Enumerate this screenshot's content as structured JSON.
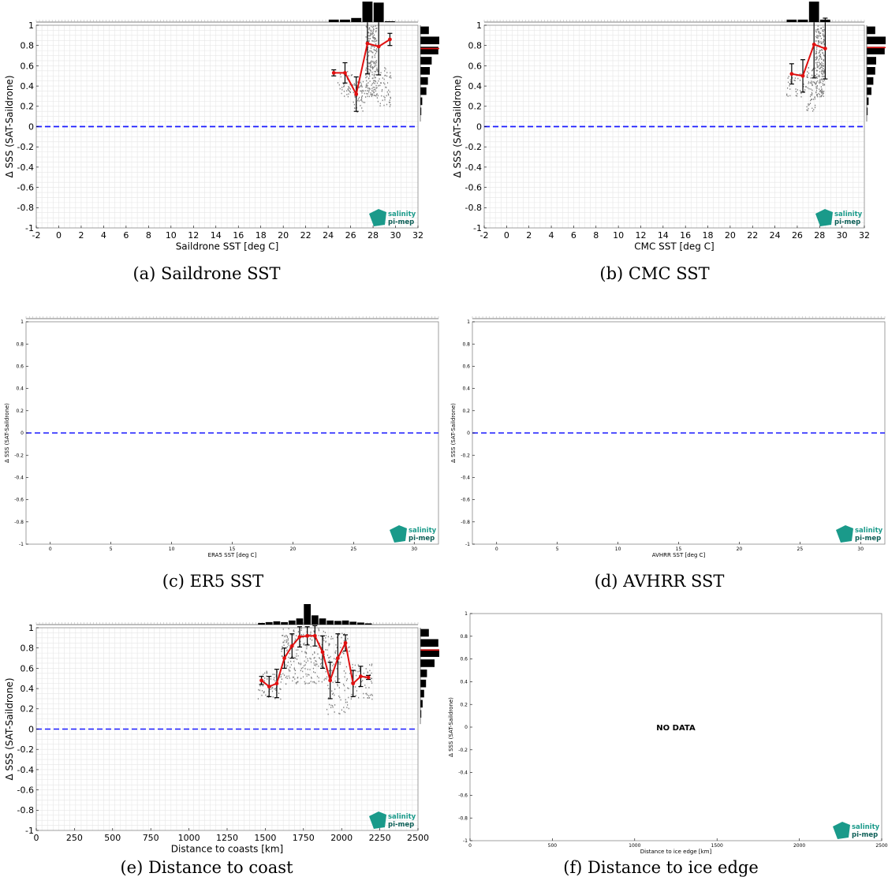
{
  "colors": {
    "mean_line": "#e01010",
    "zero_line": "#1a1aff",
    "scatter": "#7f7f7f",
    "grid": "#e6e6e6",
    "hist": "#000000",
    "logo_teal": "#1a9a8a"
  },
  "logo": {
    "line1": "salinity",
    "line2": "pi-mep"
  },
  "no_data_text": "NO DATA",
  "chart_data": [
    {
      "id": "a",
      "type": "scatter",
      "caption": "(a) Saildrone SST",
      "xlabel": "Saildrone SST [deg C]",
      "ylabel": "Δ SSS (SAT-Saildrone)",
      "xlim": [
        -2,
        32
      ],
      "ylim": [
        -1,
        1
      ],
      "xticks": [
        -2,
        0,
        2,
        4,
        6,
        8,
        10,
        12,
        14,
        16,
        18,
        20,
        22,
        24,
        26,
        28,
        30,
        32
      ],
      "yticks": [
        -1,
        -0.8,
        -0.6,
        -0.4,
        -0.2,
        0,
        0.2,
        0.4,
        0.6,
        0.8,
        1
      ],
      "grid": true,
      "zero_line": 0,
      "mean": [
        {
          "x": 24.5,
          "y": 0.53,
          "err": 0.03
        },
        {
          "x": 25.5,
          "y": 0.53,
          "err": 0.1
        },
        {
          "x": 26.5,
          "y": 0.32,
          "err": 0.17
        },
        {
          "x": 27.5,
          "y": 0.82,
          "err": 0.3
        },
        {
          "x": 28.5,
          "y": 0.79,
          "err": 0.28
        },
        {
          "x": 29.5,
          "y": 0.86,
          "err": 0.06
        }
      ],
      "scatter_clusters": [
        {
          "xmin": 24.8,
          "xmax": 26.2,
          "ymin": 0.3,
          "ymax": 0.55,
          "n": 40
        },
        {
          "xmin": 26.2,
          "xmax": 27.3,
          "ymin": 0.15,
          "ymax": 0.45,
          "n": 60
        },
        {
          "xmin": 27.3,
          "xmax": 28.3,
          "ymin": 0.3,
          "ymax": 1.0,
          "n": 220
        },
        {
          "xmin": 28.3,
          "xmax": 29.6,
          "ymin": 0.2,
          "ymax": 0.6,
          "n": 60
        }
      ],
      "x_hist": {
        "bins": [
          24.5,
          25.5,
          26.5,
          27.5,
          28.5,
          29.5
        ],
        "counts": [
          0.12,
          0.12,
          0.2,
          1.0,
          0.95,
          0.04
        ]
      },
      "y_hist": {
        "bins": [
          0.95,
          0.85,
          0.75,
          0.65,
          0.55,
          0.45,
          0.35,
          0.25,
          0.15
        ],
        "counts": [
          0.45,
          1.0,
          0.95,
          0.6,
          0.5,
          0.4,
          0.32,
          0.1,
          0.05
        ]
      },
      "y_mean_marker": 0.77
    },
    {
      "id": "b",
      "type": "scatter",
      "caption": "(b) CMC SST",
      "xlabel": "CMC SST [deg C]",
      "ylabel": "Δ SSS (SAT-Saildrone)",
      "xlim": [
        -2,
        32
      ],
      "ylim": [
        -1,
        1
      ],
      "xticks": [
        -2,
        0,
        2,
        4,
        6,
        8,
        10,
        12,
        14,
        16,
        18,
        20,
        22,
        24,
        26,
        28,
        30,
        32
      ],
      "yticks": [
        -1,
        -0.8,
        -0.6,
        -0.4,
        -0.2,
        0,
        0.2,
        0.4,
        0.6,
        0.8,
        1
      ],
      "grid": true,
      "zero_line": 0,
      "mean": [
        {
          "x": 25.5,
          "y": 0.52,
          "err": 0.1
        },
        {
          "x": 26.5,
          "y": 0.5,
          "err": 0.16
        },
        {
          "x": 27.5,
          "y": 0.81,
          "err": 0.33
        },
        {
          "x": 28.5,
          "y": 0.77,
          "err": 0.3
        }
      ],
      "scatter_clusters": [
        {
          "xmin": 25.0,
          "xmax": 26.8,
          "ymin": 0.3,
          "ymax": 0.55,
          "n": 40
        },
        {
          "xmin": 26.8,
          "xmax": 27.6,
          "ymin": 0.15,
          "ymax": 0.6,
          "n": 60
        },
        {
          "xmin": 27.6,
          "xmax": 28.4,
          "ymin": 0.3,
          "ymax": 1.0,
          "n": 220
        }
      ],
      "x_hist": {
        "bins": [
          25.5,
          26.5,
          27.5,
          28.5
        ],
        "counts": [
          0.12,
          0.12,
          1.0,
          0.12
        ]
      },
      "y_hist": {
        "bins": [
          0.95,
          0.85,
          0.75,
          0.65,
          0.55,
          0.45,
          0.35,
          0.25,
          0.15
        ],
        "counts": [
          0.45,
          1.0,
          0.95,
          0.5,
          0.45,
          0.35,
          0.25,
          0.1,
          0.05
        ]
      },
      "y_mean_marker": 0.78
    },
    {
      "id": "c",
      "type": "scatter",
      "caption": "(c) ER5 SST",
      "xlabel": "ERA5 SST [deg C]",
      "ylabel": "Δ SSS (SAT-Saildrone)",
      "xlim": [
        -2,
        32
      ],
      "ylim": [
        -1,
        1
      ],
      "xticks": [
        0,
        5,
        10,
        15,
        20,
        25,
        30
      ],
      "yticks": [
        -1,
        -0.8,
        -0.6,
        -0.4,
        -0.2,
        0,
        0.2,
        0.4,
        0.6,
        0.8,
        1
      ],
      "grid": false,
      "zero_line": 0,
      "mean": [],
      "scatter_clusters": [],
      "empty_hist_axes": true
    },
    {
      "id": "d",
      "type": "scatter",
      "caption": "(d) AVHRR SST",
      "xlabel": "AVHRR SST [deg C]",
      "ylabel": "Δ SSS (SAT-Saildrone)",
      "xlim": [
        -2,
        32
      ],
      "ylim": [
        -1,
        1
      ],
      "xticks": [
        0,
        5,
        10,
        15,
        20,
        25,
        30
      ],
      "yticks": [
        -1,
        -0.8,
        -0.6,
        -0.4,
        -0.2,
        0,
        0.2,
        0.4,
        0.6,
        0.8,
        1
      ],
      "grid": false,
      "zero_line": 0,
      "mean": [],
      "scatter_clusters": [],
      "empty_hist_axes": true
    },
    {
      "id": "e",
      "type": "scatter",
      "caption": "(e) Distance to coast",
      "xlabel": "Distance to coasts [km]",
      "ylabel": "Δ SSS (SAT-Saildrone)",
      "xlim": [
        0,
        2500
      ],
      "ylim": [
        -1,
        1
      ],
      "xticks": [
        0,
        250,
        500,
        750,
        1000,
        1250,
        1500,
        1750,
        2000,
        2250,
        2500
      ],
      "yticks": [
        -1,
        -0.8,
        -0.6,
        -0.4,
        -0.2,
        0,
        0.2,
        0.4,
        0.6,
        0.8,
        1
      ],
      "grid": true,
      "zero_line": 0,
      "mean": [
        {
          "x": 1475,
          "y": 0.48,
          "err": 0.04
        },
        {
          "x": 1525,
          "y": 0.42,
          "err": 0.1
        },
        {
          "x": 1575,
          "y": 0.45,
          "err": 0.14
        },
        {
          "x": 1625,
          "y": 0.7,
          "err": 0.1
        },
        {
          "x": 1675,
          "y": 0.82,
          "err": 0.12
        },
        {
          "x": 1725,
          "y": 0.91,
          "err": 0.1
        },
        {
          "x": 1775,
          "y": 0.92,
          "err": 0.09
        },
        {
          "x": 1825,
          "y": 0.92,
          "err": 0.1
        },
        {
          "x": 1875,
          "y": 0.76,
          "err": 0.16
        },
        {
          "x": 1925,
          "y": 0.48,
          "err": 0.18
        },
        {
          "x": 1975,
          "y": 0.7,
          "err": 0.24
        },
        {
          "x": 2025,
          "y": 0.85,
          "err": 0.08
        },
        {
          "x": 2075,
          "y": 0.45,
          "err": 0.13
        },
        {
          "x": 2125,
          "y": 0.52,
          "err": 0.1
        },
        {
          "x": 2175,
          "y": 0.51,
          "err": 0.02
        }
      ],
      "scatter_clusters": [
        {
          "xmin": 1450,
          "xmax": 1600,
          "ymin": 0.3,
          "ymax": 0.6,
          "n": 60
        },
        {
          "xmin": 1600,
          "xmax": 1900,
          "ymin": 0.45,
          "ymax": 1.0,
          "n": 240
        },
        {
          "xmin": 1900,
          "xmax": 2050,
          "ymin": 0.15,
          "ymax": 0.95,
          "n": 120
        },
        {
          "xmin": 2050,
          "xmax": 2200,
          "ymin": 0.3,
          "ymax": 0.65,
          "n": 60
        }
      ],
      "x_hist": {
        "bins": [
          1475,
          1525,
          1575,
          1625,
          1675,
          1725,
          1775,
          1825,
          1875,
          1925,
          1975,
          2025,
          2075,
          2125,
          2175
        ],
        "counts": [
          0.08,
          0.12,
          0.16,
          0.12,
          0.2,
          0.3,
          1.0,
          0.45,
          0.3,
          0.2,
          0.18,
          0.2,
          0.14,
          0.1,
          0.06
        ]
      },
      "y_hist": {
        "bins": [
          0.95,
          0.85,
          0.75,
          0.65,
          0.55,
          0.45,
          0.35,
          0.25,
          0.15
        ],
        "counts": [
          0.45,
          0.95,
          1.0,
          0.75,
          0.35,
          0.3,
          0.2,
          0.12,
          0.05
        ]
      },
      "y_mean_marker": 0.78
    },
    {
      "id": "f",
      "type": "scatter",
      "caption": "(f) Distance to ice edge",
      "xlabel": "Distance to ice edge [km]",
      "ylabel": "Δ SSS (SAT-Saildrone)",
      "xlim": [
        0,
        2500
      ],
      "ylim": [
        -1,
        1
      ],
      "xticks": [
        0,
        500,
        1000,
        1500,
        2000,
        2500
      ],
      "yticks": [
        -1,
        -0.8,
        -0.6,
        -0.4,
        -0.2,
        0,
        0.2,
        0.4,
        0.6,
        0.8,
        1
      ],
      "grid": false,
      "zero_line": null,
      "no_data": true,
      "mean": [],
      "scatter_clusters": []
    }
  ]
}
